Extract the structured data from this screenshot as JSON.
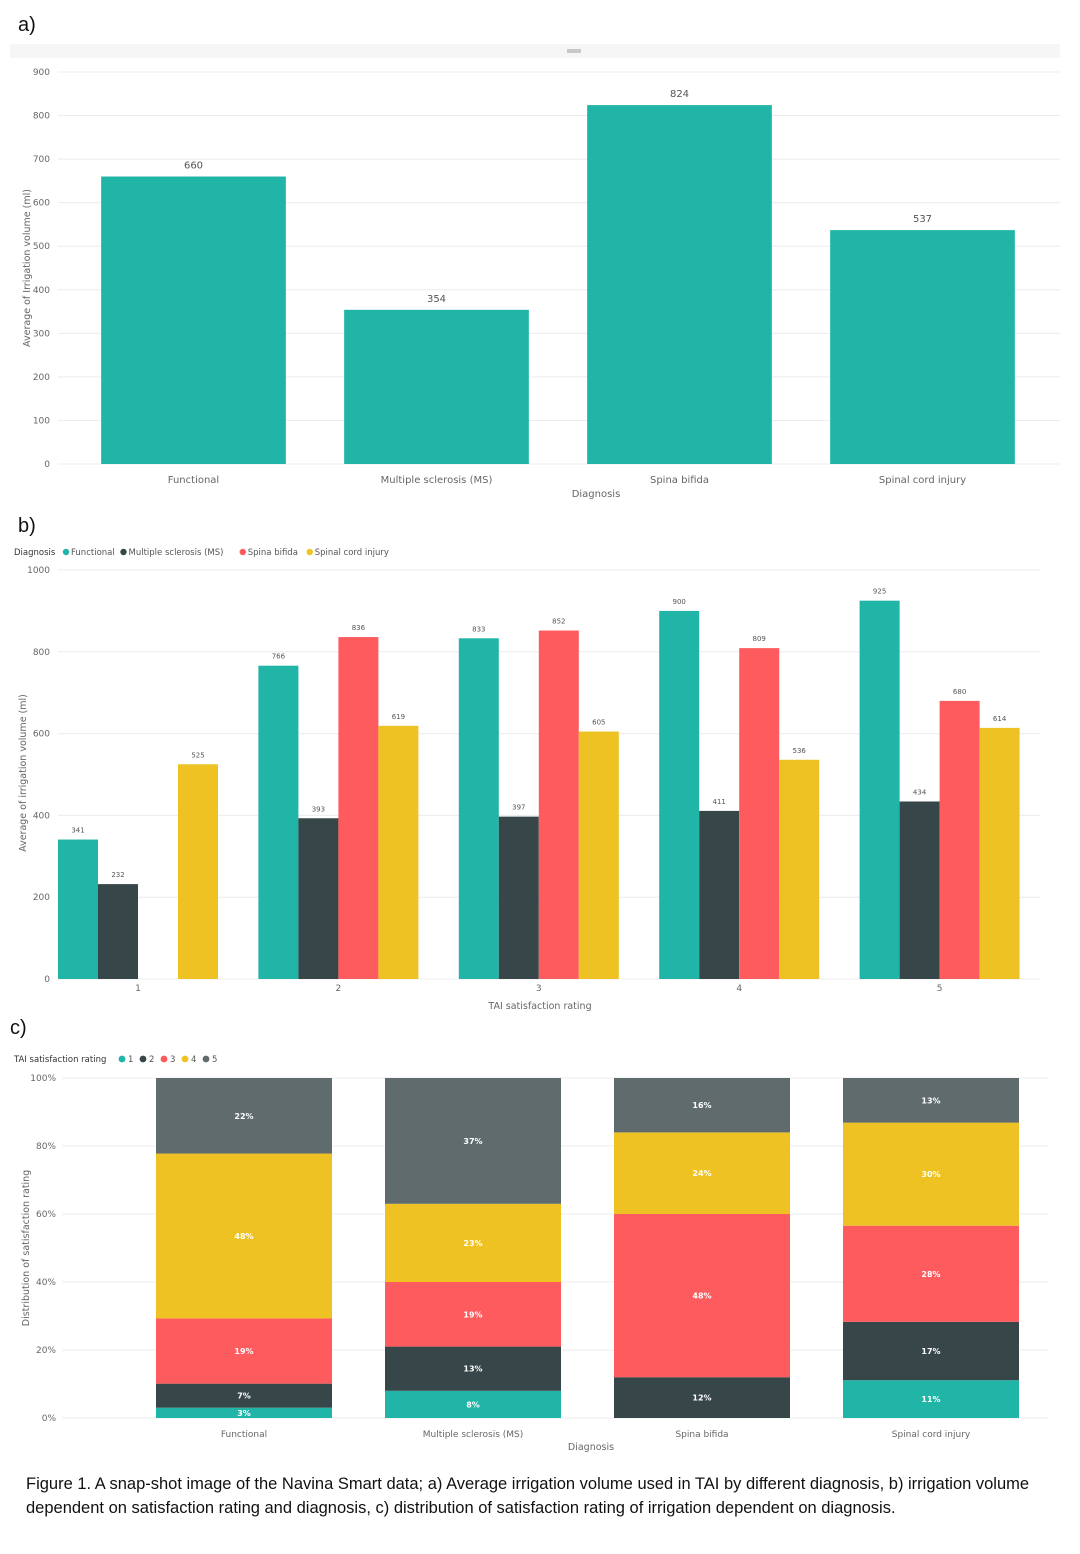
{
  "colors": {
    "teal": "#20b5a6",
    "dark": "#374649",
    "red": "#fd5b5d",
    "yellow": "#efc223",
    "gray": "#5f6b6d"
  },
  "panels": {
    "a": "a)",
    "b": "b)",
    "c": "c)"
  },
  "caption": "Figure 1. A snap-shot image of the Navina Smart data; a) Average irrigation volume used in TAI by different diagnosis, b) irrigation volume dependent on satisfaction rating and diagnosis, c) distribution of satisfaction rating of irrigation dependent on diagnosis.",
  "chart_data": [
    {
      "type": "bar",
      "categories": [
        "Functional",
        "Multiple sclerosis (MS)",
        "Spina bifida",
        "Spinal cord injury"
      ],
      "values": [
        660,
        354,
        824,
        537
      ],
      "xlabel": "Diagnosis",
      "ylabel": "Average of Irrigation volume (ml)",
      "ylim": [
        0,
        900
      ],
      "yticks": [
        0,
        100,
        200,
        300,
        400,
        500,
        600,
        700,
        800,
        900
      ],
      "grid": true
    },
    {
      "type": "bar",
      "categories": [
        "1",
        "2",
        "3",
        "4",
        "5"
      ],
      "legend_title": "Diagnosis",
      "legend_position": "top-left",
      "series": [
        {
          "name": "Functional",
          "color": "#20b5a6",
          "values": [
            341,
            766,
            833,
            900,
            925
          ]
        },
        {
          "name": "Multiple sclerosis (MS)",
          "color": "#374649",
          "values": [
            232,
            393,
            397,
            411,
            434
          ]
        },
        {
          "name": "Spina bifida",
          "color": "#fd5b5d",
          "values": [
            null,
            836,
            852,
            809,
            680
          ]
        },
        {
          "name": "Spinal cord injury",
          "color": "#efc223",
          "values": [
            525,
            619,
            605,
            536,
            614
          ]
        }
      ],
      "xlabel": "TAI satisfaction rating",
      "ylabel": "Average of irrigation volume (ml)",
      "ylim": [
        0,
        1000
      ],
      "yticks": [
        0,
        200,
        400,
        600,
        800,
        1000
      ],
      "grid": true
    },
    {
      "type": "bar",
      "stacked": true,
      "categories": [
        "Functional",
        "Multiple sclerosis (MS)",
        "Spina bifida",
        "Spinal cord injury"
      ],
      "legend_title": "TAI satisfaction rating",
      "legend_position": "top-left",
      "series": [
        {
          "name": "1",
          "color": "#20b5a6",
          "values": [
            3,
            8,
            0,
            11
          ],
          "labels": [
            "3%",
            "8%",
            "",
            "11%"
          ]
        },
        {
          "name": "2",
          "color": "#374649",
          "values": [
            7,
            13,
            12,
            17
          ],
          "labels": [
            "7%",
            "13%",
            "12%",
            "17%"
          ]
        },
        {
          "name": "3",
          "color": "#fd5b5d",
          "values": [
            19,
            19,
            48,
            28
          ],
          "labels": [
            "19%",
            "19%",
            "48%",
            "28%"
          ]
        },
        {
          "name": "4",
          "color": "#efc223",
          "values": [
            48,
            23,
            24,
            30
          ],
          "labels": [
            "48%",
            "23%",
            "24%",
            "30%"
          ]
        },
        {
          "name": "5",
          "color": "#5f6b6d",
          "values": [
            22,
            37,
            16,
            13
          ],
          "labels": [
            "22%",
            "37%",
            "16%",
            "13%"
          ]
        }
      ],
      "xlabel": "Diagnosis",
      "ylabel": "Distribution of satisfaction rating",
      "ylim": [
        0,
        100
      ],
      "yticks": [
        "0%",
        "20%",
        "40%",
        "60%",
        "80%",
        "100%"
      ],
      "grid": true
    }
  ]
}
